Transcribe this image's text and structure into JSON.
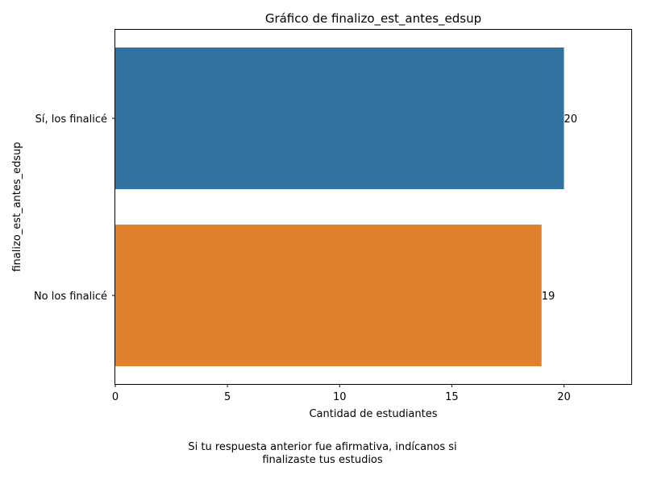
{
  "chart_data": {
    "type": "bar",
    "orientation": "horizontal",
    "title": "Gráfico de finalizo_est_antes_edsup",
    "xlabel": "Cantidad de estudiantes",
    "ylabel": "finalizo_est_antes_edsup",
    "categories": [
      "Sí, los finalicé",
      "No los finalicé"
    ],
    "values": [
      20,
      19
    ],
    "data_labels": [
      "20",
      "19"
    ],
    "colors": [
      "#3274a1",
      "#e1812c"
    ],
    "xlim": [
      0,
      23
    ],
    "xticks": [
      0,
      5,
      10,
      15,
      20
    ],
    "grid": false,
    "legend": "none"
  },
  "caption": {
    "line1": "Si tu respuesta anterior fue afirmativa, indícanos si",
    "line2": "finalizaste tus estudios"
  }
}
